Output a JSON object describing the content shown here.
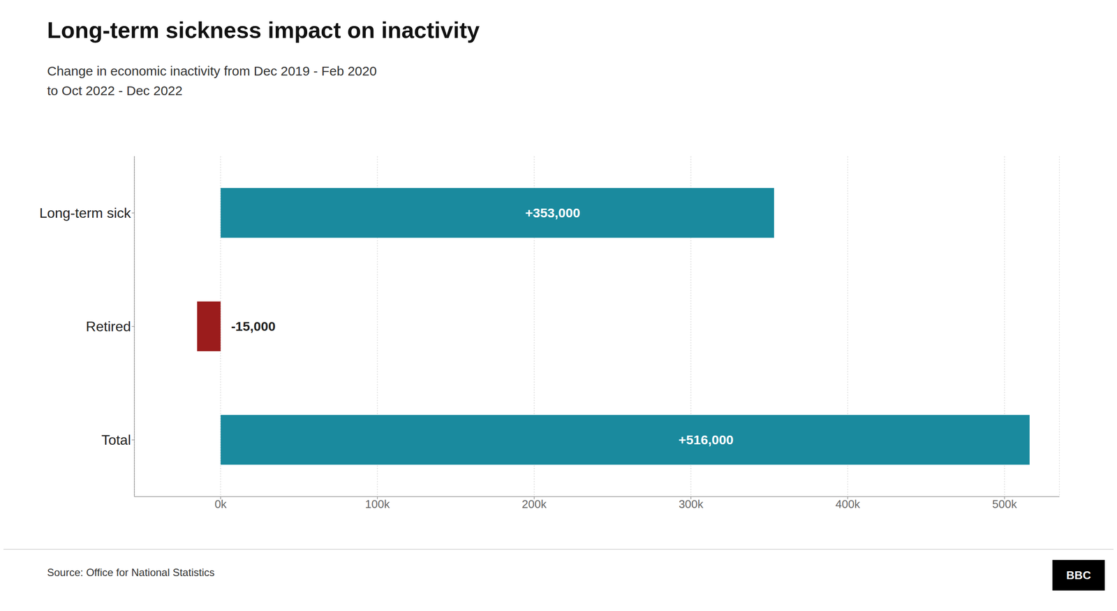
{
  "chart_data": {
    "type": "bar",
    "orientation": "horizontal",
    "title": "Long-term sickness impact on inactivity",
    "subtitle": "Change in economic inactivity from Dec 2019 - Feb 2020\nto Oct 2022 - Dec 2022",
    "source": "Source: Office for National Statistics",
    "logo": "BBC",
    "categories": [
      "Long-term sick",
      "Retired",
      "Total"
    ],
    "values": [
      353000,
      -15000,
      516000
    ],
    "value_labels": [
      "+353,000",
      "-15,000",
      "+516,000"
    ],
    "colors": [
      "#1a8a9e",
      "#9b1c1c",
      "#1a8a9e"
    ],
    "xlim": [
      -55000,
      535000
    ],
    "xticks": [
      {
        "value": 0,
        "label": "0k"
      },
      {
        "value": 100000,
        "label": "100k"
      },
      {
        "value": 200000,
        "label": "200k"
      },
      {
        "value": 300000,
        "label": "300k"
      },
      {
        "value": 400000,
        "label": "400k"
      },
      {
        "value": 500000,
        "label": "500k"
      }
    ],
    "grid": true,
    "data_labels": true
  }
}
